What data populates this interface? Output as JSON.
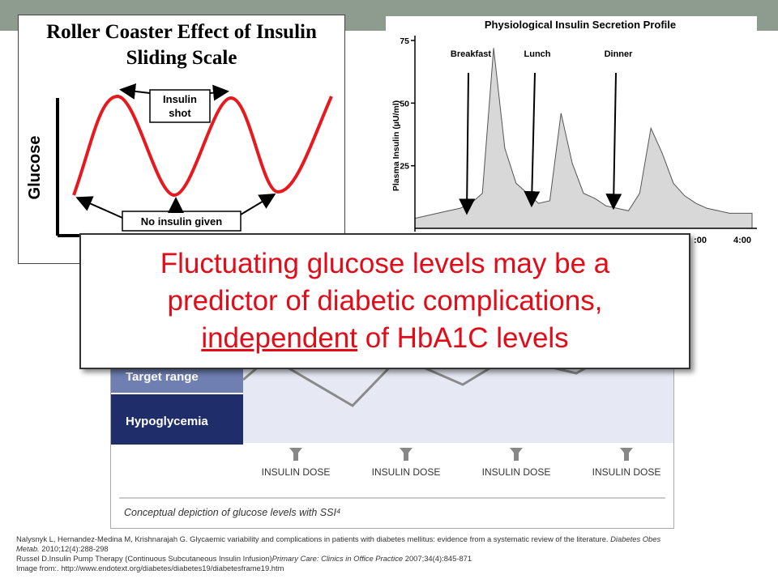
{
  "colors": {
    "topbar": "#8e9c90",
    "red_curve": "#e8191e",
    "callout_text": "#e30b18",
    "target_band": "#6f7fb1",
    "hypo_band": "#1f2e6b",
    "band_bg": "#e6e9f4",
    "insulin_fill": "#d8d8d8",
    "ssi_curve": "#8a8a8a"
  },
  "callout": {
    "line1": "Fluctuating glucose levels may be a",
    "line2": "predictor of diabetic complications,",
    "line3_underlined": "independent",
    "line3_rest": " of HbA1C levels"
  },
  "roller_panel": {
    "title_line1": "Roller Coaster Effect of Insulin",
    "title_line2": "Sliding Scale",
    "y_label": "Glucose",
    "annotation_top_1": "Insulin",
    "annotation_top_2": "shot",
    "annotation_bottom": "No insulin given"
  },
  "ssi_panel": {
    "band_target": "Target range",
    "band_hypo": "Hypoglycemia",
    "dose_label": "INSULIN DOSE",
    "doses": [
      "INSULIN DOSE",
      "INSULIN DOSE",
      "INSULIN DOSE",
      "INSULIN DOSE"
    ],
    "caption": "Conceptual depiction of glucose levels with SSI⁴"
  },
  "chart_data": [
    {
      "type": "line",
      "title": "Physiological Insulin Secretion Profile",
      "xlabel": "",
      "ylabel": "Plasma Insulin (µU/ml)",
      "ylim": [
        0,
        75
      ],
      "yticks": [
        25,
        50,
        75
      ],
      "xtick_labels_visible": [
        ":00",
        "4:00"
      ],
      "annotations": [
        "Breakfast",
        "Lunch",
        "Dinner"
      ],
      "grid": false,
      "series": [
        {
          "x": [
            0,
            1,
            2,
            3,
            4,
            5,
            6,
            7,
            8,
            9,
            10,
            11,
            12,
            13,
            14,
            15,
            16,
            17,
            18,
            19,
            20,
            21,
            22,
            23,
            24,
            25,
            26,
            27,
            28,
            29,
            30
          ],
          "values": [
            4,
            5,
            6,
            7,
            8,
            10,
            14,
            72,
            32,
            18,
            14,
            10,
            11,
            46,
            26,
            14,
            12,
            9,
            8,
            7,
            14,
            40,
            30,
            18,
            13,
            10,
            8,
            7,
            6,
            6,
            6
          ]
        }
      ]
    }
  ]
}
